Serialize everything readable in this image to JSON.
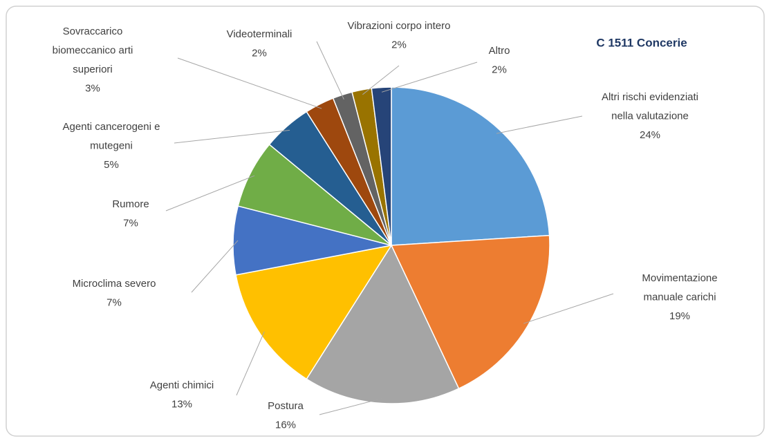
{
  "chart_data": {
    "type": "pie",
    "title": "C  1511  Concerie",
    "categories": [
      "Altri rischi evidenziati nella valutazione",
      "Movimentazione manuale carichi",
      "Postura",
      "Agenti chimici",
      "Microclima severo",
      "Rumore",
      "Agenti cancerogeni e mutegeni",
      "Sovraccarico biomeccanico arti superiori",
      "Videoterminali",
      "Vibrazioni corpo intero",
      "Altro"
    ],
    "values": [
      24,
      19,
      16,
      13,
      7,
      7,
      5,
      3,
      2,
      2,
      2
    ],
    "value_labels": [
      "24%",
      "19%",
      "16%",
      "13%",
      "7%",
      "7%",
      "5%",
      "3%",
      "2%",
      "2%",
      "2%"
    ],
    "colors": [
      "#5b9bd5",
      "#ed7d31",
      "#a5a5a5",
      "#ffc000",
      "#4472c4",
      "#70ad47",
      "#255e91",
      "#9e480e",
      "#636363",
      "#997300",
      "#264478"
    ]
  }
}
